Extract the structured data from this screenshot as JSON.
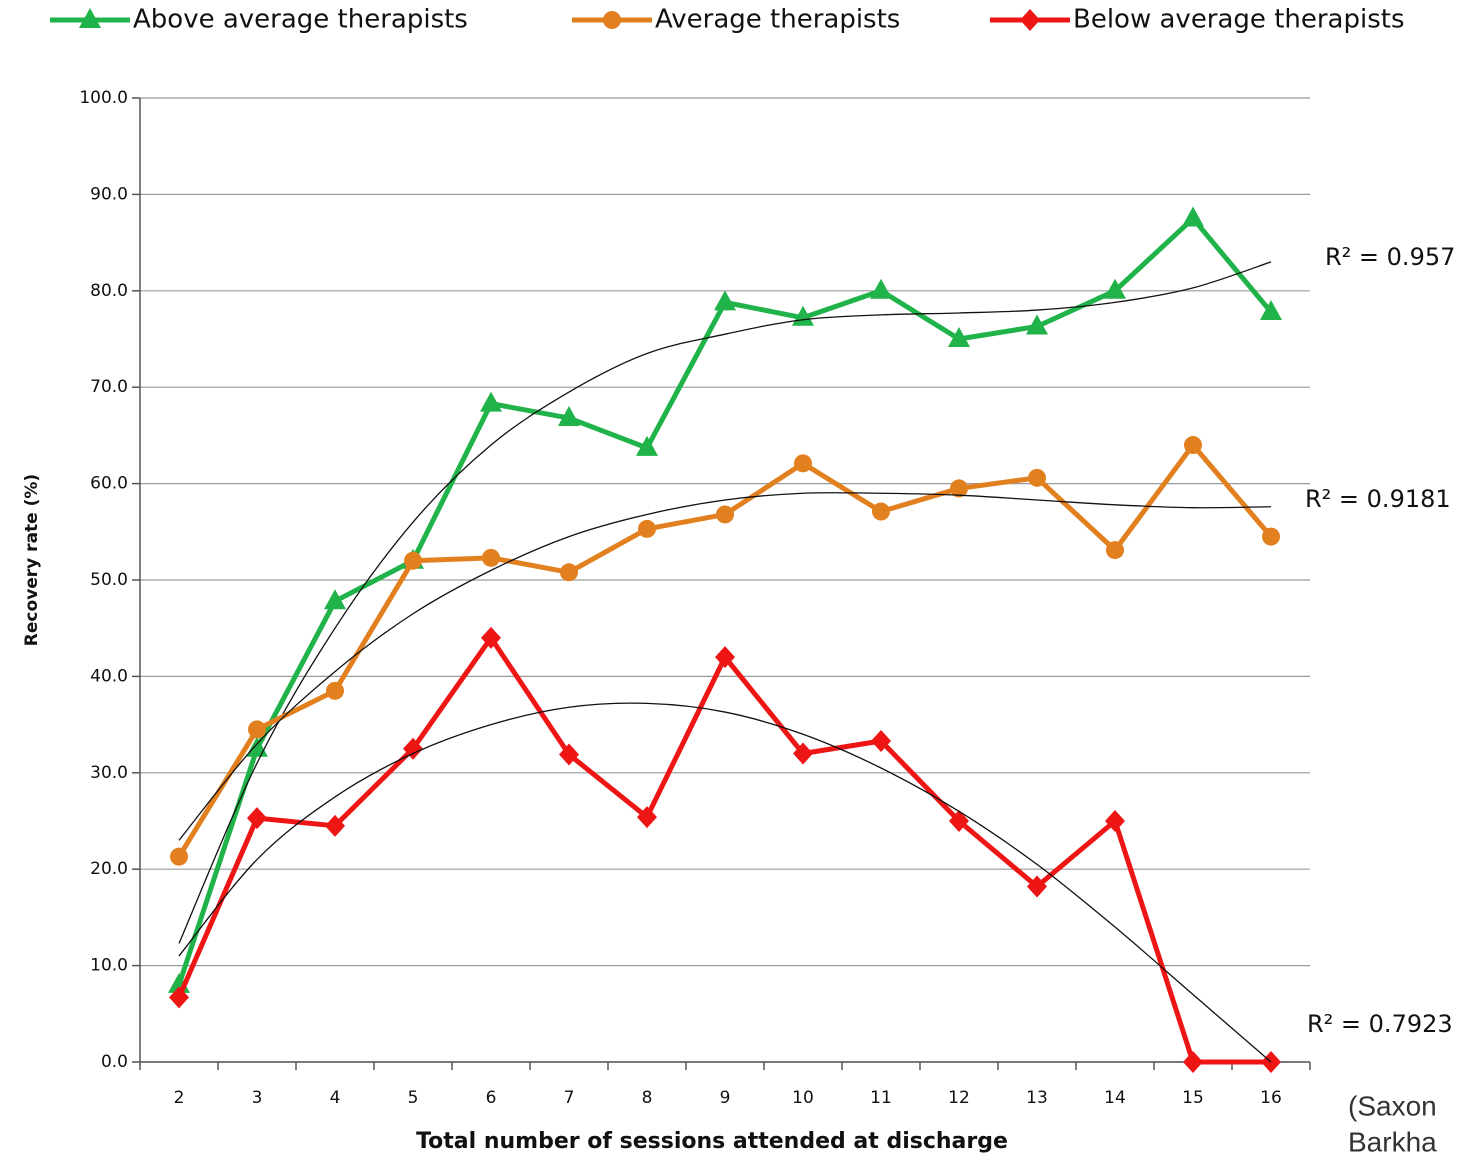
{
  "chart_data": {
    "type": "line",
    "x_label": "Total number of sessions attended at discharge",
    "y_label": "Recovery rate (%)",
    "categories": [
      "2",
      "3",
      "4",
      "5",
      "6",
      "7",
      "8",
      "9",
      "10",
      "11",
      "12",
      "13",
      "14",
      "15",
      "16"
    ],
    "ylim": [
      0,
      100
    ],
    "yticks": [
      {
        "value": 0,
        "label": "0.0"
      },
      {
        "value": 10,
        "label": "10.0"
      },
      {
        "value": 20,
        "label": "20.0"
      },
      {
        "value": 30,
        "label": "30.0"
      },
      {
        "value": 40,
        "label": "40.0"
      },
      {
        "value": 50,
        "label": "50.0"
      },
      {
        "value": 60,
        "label": "60.0"
      },
      {
        "value": 70,
        "label": "70.0"
      },
      {
        "value": 80,
        "label": "80.0"
      },
      {
        "value": 90,
        "label": "90.0"
      },
      {
        "value": 100,
        "label": "100.0"
      }
    ],
    "grid": true,
    "legend": "top",
    "series": [
      {
        "name": "Above average therapists",
        "color": "#20b34a",
        "marker": "triangle",
        "values": [
          8.0,
          32.5,
          47.8,
          52.0,
          68.3,
          66.8,
          63.7,
          78.8,
          77.2,
          80.0,
          75.0,
          76.3,
          80.0,
          87.5,
          77.8
        ],
        "trend": [
          12.3,
          31,
          45,
          56,
          64,
          69.5,
          73.5,
          75.5,
          77,
          77.5,
          77.7,
          78,
          78.8,
          80.3,
          83.0
        ],
        "r2": "R² = 0.957"
      },
      {
        "name": "Average therapists",
        "color": "#e2801f",
        "marker": "circle",
        "values": [
          21.3,
          34.5,
          38.5,
          52.0,
          52.3,
          50.8,
          55.3,
          56.8,
          62.1,
          57.1,
          59.5,
          60.6,
          53.1,
          64.0,
          54.5
        ],
        "trend": [
          23,
          33,
          40.5,
          46.5,
          51,
          54.5,
          56.8,
          58.3,
          59,
          59,
          58.8,
          58.3,
          57.8,
          57.5,
          57.6
        ],
        "r2": "R² = 0.9181"
      },
      {
        "name": "Below average therapists",
        "color": "#ee1515",
        "marker": "diamond",
        "values": [
          6.7,
          25.3,
          24.5,
          32.5,
          44.0,
          31.9,
          25.4,
          42.0,
          32.0,
          33.3,
          25.0,
          18.2,
          25.0,
          0.0,
          0.0
        ],
        "trend": [
          11.0,
          21,
          27.5,
          32,
          35,
          36.8,
          37.2,
          36.3,
          34,
          30.5,
          26,
          20.5,
          14,
          7,
          0
        ],
        "r2": "R² = 0.7923"
      }
    ],
    "source": [
      "(Saxon",
      "Barkha"
    ]
  }
}
